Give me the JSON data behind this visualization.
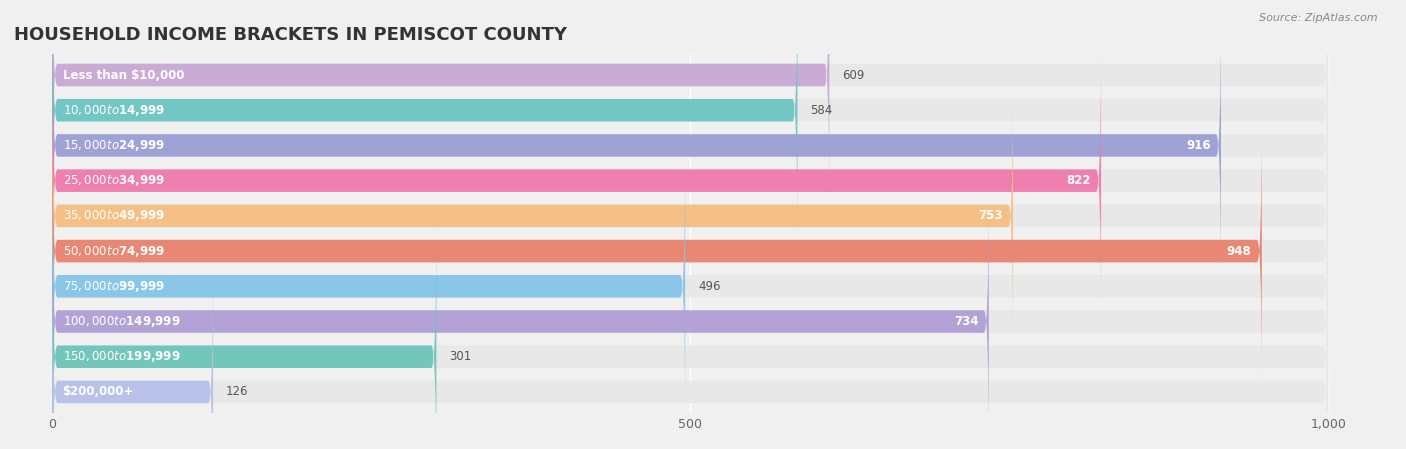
{
  "title": "HOUSEHOLD INCOME BRACKETS IN PEMISCOT COUNTY",
  "source": "Source: ZipAtlas.com",
  "categories": [
    "Less than $10,000",
    "$10,000 to $14,999",
    "$15,000 to $24,999",
    "$25,000 to $34,999",
    "$35,000 to $49,999",
    "$50,000 to $74,999",
    "$75,000 to $99,999",
    "$100,000 to $149,999",
    "$150,000 to $199,999",
    "$200,000+"
  ],
  "values": [
    609,
    584,
    916,
    822,
    753,
    948,
    496,
    734,
    301,
    126
  ],
  "bar_colors": [
    "#c9a8d4",
    "#6cc5c1",
    "#9b9fd4",
    "#f07aab",
    "#f5be80",
    "#e8836e",
    "#85c5e8",
    "#b09fd4",
    "#6cc5b8",
    "#b8bfe8"
  ],
  "xlim": [
    -30,
    1050
  ],
  "xticks": [
    0,
    500,
    1000
  ],
  "xticklabels": [
    "0",
    "500",
    "1,000"
  ],
  "bar_height": 0.62,
  "background_color": "#f0f0f0",
  "bar_bg_color": "#e8e8e8",
  "title_fontsize": 13,
  "label_fontsize": 8.5,
  "value_fontsize": 8.5
}
